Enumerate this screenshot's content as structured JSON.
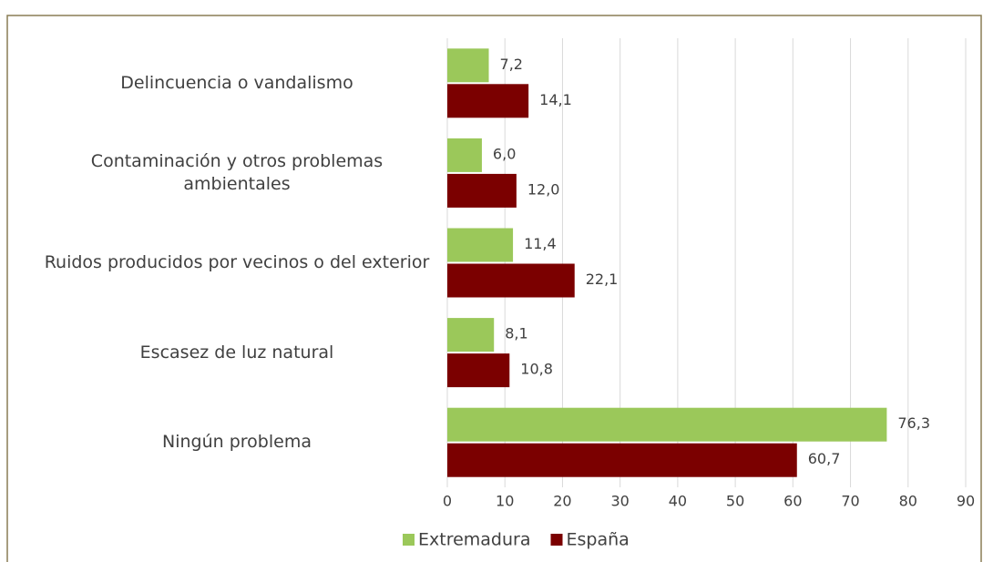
{
  "chart_data": {
    "type": "bar",
    "orientation": "horizontal",
    "categories": [
      "Delincuencia o vandalismo",
      "Contaminación y otros problemas ambientales",
      "Ruidos producidos por vecinos o del exterior",
      "Escasez de luz natural",
      "Ningún problema"
    ],
    "series": [
      {
        "name": "Extremadura",
        "color": "#9bc85a",
        "values": [
          7.2,
          6.0,
          11.4,
          8.1,
          76.3
        ],
        "value_labels": [
          "7,2",
          "6,0",
          "11,4",
          "8,1",
          "76,3"
        ]
      },
      {
        "name": "España",
        "color": "#7b0000",
        "values": [
          14.1,
          12.0,
          22.1,
          10.8,
          60.7
        ],
        "value_labels": [
          "14,1",
          "12,0",
          "22,1",
          "10,8",
          "60,7"
        ]
      }
    ],
    "xlim": [
      0,
      90
    ],
    "xticks": [
      0,
      10,
      20,
      30,
      40,
      50,
      60,
      70,
      80,
      90
    ],
    "grid": true,
    "legend": "bottom"
  }
}
